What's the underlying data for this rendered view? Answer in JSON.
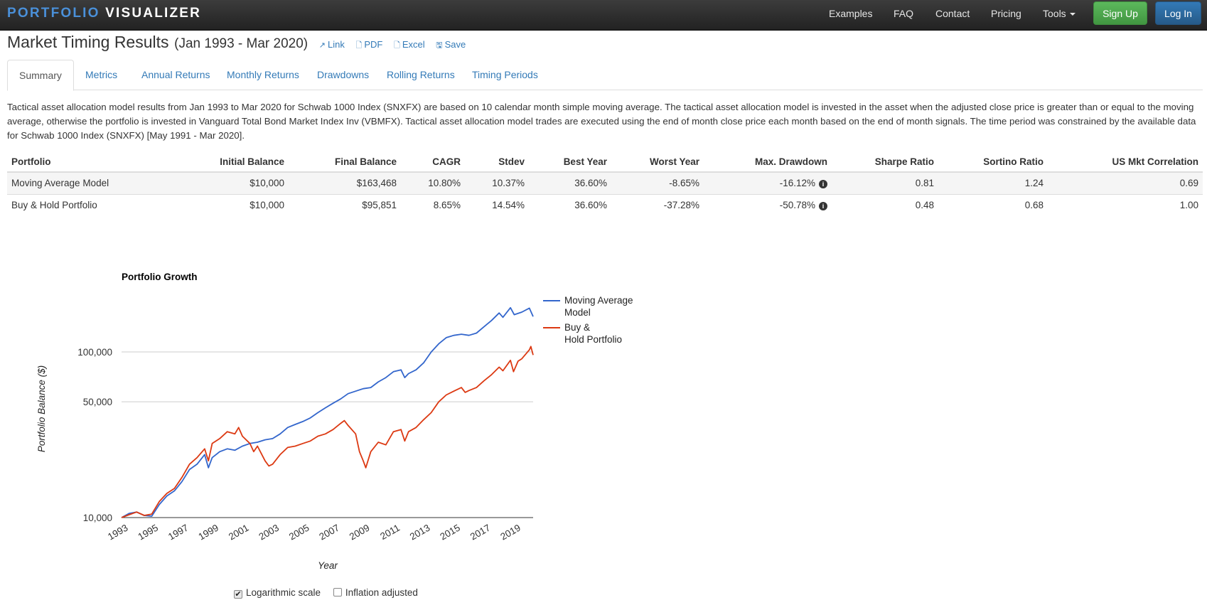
{
  "brand": {
    "part1": "PORTFOLIO",
    "part2": "VISUALIZER"
  },
  "nav": {
    "examples": "Examples",
    "faq": "FAQ",
    "contact": "Contact",
    "pricing": "Pricing",
    "tools": "Tools",
    "signup": "Sign Up",
    "login": "Log In"
  },
  "page": {
    "title": "Market Timing Results",
    "period": "(Jan 1993 - Mar 2020)",
    "actions": {
      "link": "Link",
      "pdf": "PDF",
      "excel": "Excel",
      "save": "Save"
    }
  },
  "tabs": [
    "Summary",
    "Metrics",
    "Annual Returns",
    "Monthly Returns",
    "Drawdowns",
    "Rolling Returns",
    "Timing Periods"
  ],
  "description": "Tactical asset allocation model results from Jan 1993 to Mar 2020 for Schwab 1000 Index (SNXFX) are based on 10 calendar month simple moving average. The tactical asset allocation model is invested in the asset when the adjusted close price is greater than or equal to the moving average, otherwise the portfolio is invested in Vanguard Total Bond Market Index Inv (VBMFX). Tactical asset allocation model trades are executed using the end of month close price each month based on the end of month signals. The time period was constrained by the available data for Schwab 1000 Index (SNXFX) [May 1991 - Mar 2020].",
  "table": {
    "headers": [
      "Portfolio",
      "Initial Balance",
      "Final Balance",
      "CAGR",
      "Stdev",
      "Best Year",
      "Worst Year",
      "Max. Drawdown",
      "Sharpe Ratio",
      "Sortino Ratio",
      "US Mkt Correlation"
    ],
    "rows": [
      [
        "Moving Average Model",
        "$10,000",
        "$163,468",
        "10.80%",
        "10.37%",
        "36.60%",
        "-8.65%",
        "-16.12%",
        "0.81",
        "1.24",
        "0.69"
      ],
      [
        "Buy & Hold Portfolio",
        "$10,000",
        "$95,851",
        "8.65%",
        "14.54%",
        "36.60%",
        "-37.28%",
        "-50.78%",
        "0.48",
        "0.68",
        "1.00"
      ]
    ]
  },
  "chart_data": {
    "type": "line",
    "title": "Portfolio Growth",
    "xlabel": "Year",
    "ylabel": "Portfolio Balance ($)",
    "yscale": "log",
    "ylim": [
      10000,
      210000
    ],
    "xlim": [
      1993.0,
      2020.25
    ],
    "yticks": [
      10000,
      50000,
      100000
    ],
    "ytick_labels": [
      "10,000",
      "50,000",
      "100,000"
    ],
    "xticks": [
      "1993",
      "1995",
      "1997",
      "1999",
      "2001",
      "2003",
      "2005",
      "2007",
      "2009",
      "2011",
      "2013",
      "2015",
      "2017",
      "2019"
    ],
    "legend_position": "right",
    "series": [
      {
        "name": "Moving Average Model",
        "color": "#3366cc",
        "points": [
          [
            1993.0,
            10000
          ],
          [
            1993.5,
            10600
          ],
          [
            1994.0,
            10800
          ],
          [
            1994.5,
            10300
          ],
          [
            1995.0,
            10200
          ],
          [
            1995.5,
            12000
          ],
          [
            1996.0,
            13500
          ],
          [
            1996.5,
            14500
          ],
          [
            1997.0,
            16500
          ],
          [
            1997.5,
            19500
          ],
          [
            1998.0,
            21000
          ],
          [
            1998.5,
            24000
          ],
          [
            1998.75,
            20000
          ],
          [
            1999.0,
            23000
          ],
          [
            1999.5,
            25000
          ],
          [
            2000.0,
            26000
          ],
          [
            2000.5,
            25500
          ],
          [
            2001.0,
            27000
          ],
          [
            2001.5,
            28000
          ],
          [
            2002.0,
            28500
          ],
          [
            2002.5,
            29500
          ],
          [
            2003.0,
            30000
          ],
          [
            2003.5,
            32000
          ],
          [
            2004.0,
            35000
          ],
          [
            2004.5,
            36500
          ],
          [
            2005.0,
            38000
          ],
          [
            2005.5,
            40000
          ],
          [
            2006.0,
            43000
          ],
          [
            2006.5,
            46000
          ],
          [
            2007.0,
            49000
          ],
          [
            2007.5,
            52000
          ],
          [
            2008.0,
            56000
          ],
          [
            2008.5,
            58000
          ],
          [
            2009.0,
            60000
          ],
          [
            2009.5,
            61000
          ],
          [
            2010.0,
            66000
          ],
          [
            2010.5,
            70000
          ],
          [
            2011.0,
            76000
          ],
          [
            2011.5,
            78000
          ],
          [
            2011.75,
            70000
          ],
          [
            2012.0,
            74000
          ],
          [
            2012.5,
            78000
          ],
          [
            2013.0,
            86000
          ],
          [
            2013.5,
            100000
          ],
          [
            2014.0,
            112000
          ],
          [
            2014.5,
            122000
          ],
          [
            2015.0,
            126000
          ],
          [
            2015.5,
            128000
          ],
          [
            2016.0,
            126000
          ],
          [
            2016.5,
            130000
          ],
          [
            2017.0,
            142000
          ],
          [
            2017.5,
            155000
          ],
          [
            2018.0,
            172000
          ],
          [
            2018.25,
            162000
          ],
          [
            2018.75,
            185000
          ],
          [
            2019.0,
            168000
          ],
          [
            2019.5,
            174000
          ],
          [
            2020.0,
            184000
          ],
          [
            2020.25,
            163468
          ]
        ]
      },
      {
        "name": "Buy & Hold Portfolio",
        "color": "#dc3912",
        "points": [
          [
            1993.0,
            10000
          ],
          [
            1993.5,
            10400
          ],
          [
            1994.0,
            10800
          ],
          [
            1994.5,
            10300
          ],
          [
            1995.0,
            10500
          ],
          [
            1995.5,
            12500
          ],
          [
            1996.0,
            14000
          ],
          [
            1996.5,
            15000
          ],
          [
            1997.0,
            17500
          ],
          [
            1997.5,
            21000
          ],
          [
            1998.0,
            23000
          ],
          [
            1998.5,
            26000
          ],
          [
            1998.75,
            22000
          ],
          [
            1999.0,
            28000
          ],
          [
            1999.5,
            30000
          ],
          [
            2000.0,
            33000
          ],
          [
            2000.5,
            32000
          ],
          [
            2000.75,
            35000
          ],
          [
            2001.0,
            31000
          ],
          [
            2001.5,
            28000
          ],
          [
            2001.75,
            25000
          ],
          [
            2002.0,
            27000
          ],
          [
            2002.5,
            22000
          ],
          [
            2002.75,
            20500
          ],
          [
            2003.0,
            21000
          ],
          [
            2003.5,
            24000
          ],
          [
            2004.0,
            26500
          ],
          [
            2004.5,
            27000
          ],
          [
            2005.0,
            28000
          ],
          [
            2005.5,
            29000
          ],
          [
            2006.0,
            31000
          ],
          [
            2006.5,
            32000
          ],
          [
            2007.0,
            34000
          ],
          [
            2007.5,
            37000
          ],
          [
            2007.75,
            38500
          ],
          [
            2008.0,
            36000
          ],
          [
            2008.5,
            32000
          ],
          [
            2008.75,
            25000
          ],
          [
            2009.0,
            22000
          ],
          [
            2009.17,
            20000
          ],
          [
            2009.5,
            25000
          ],
          [
            2010.0,
            28500
          ],
          [
            2010.5,
            27500
          ],
          [
            2011.0,
            33000
          ],
          [
            2011.5,
            34000
          ],
          [
            2011.75,
            29000
          ],
          [
            2012.0,
            33000
          ],
          [
            2012.5,
            35000
          ],
          [
            2013.0,
            39000
          ],
          [
            2013.5,
            43000
          ],
          [
            2014.0,
            50000
          ],
          [
            2014.5,
            55000
          ],
          [
            2015.0,
            58000
          ],
          [
            2015.5,
            61000
          ],
          [
            2015.75,
            57000
          ],
          [
            2016.0,
            58500
          ],
          [
            2016.5,
            61000
          ],
          [
            2017.0,
            67000
          ],
          [
            2017.5,
            73000
          ],
          [
            2018.0,
            81000
          ],
          [
            2018.25,
            77000
          ],
          [
            2018.75,
            89000
          ],
          [
            2018.95,
            76000
          ],
          [
            2019.25,
            88000
          ],
          [
            2019.5,
            91000
          ],
          [
            2020.0,
            103000
          ],
          [
            2020.1,
            108000
          ],
          [
            2020.25,
            95851
          ]
        ]
      }
    ]
  },
  "options": {
    "log_label": "Logarithmic scale",
    "log_checked": true,
    "inflation_label": "Inflation adjusted",
    "inflation_checked": false,
    "checkmark": "✔"
  }
}
